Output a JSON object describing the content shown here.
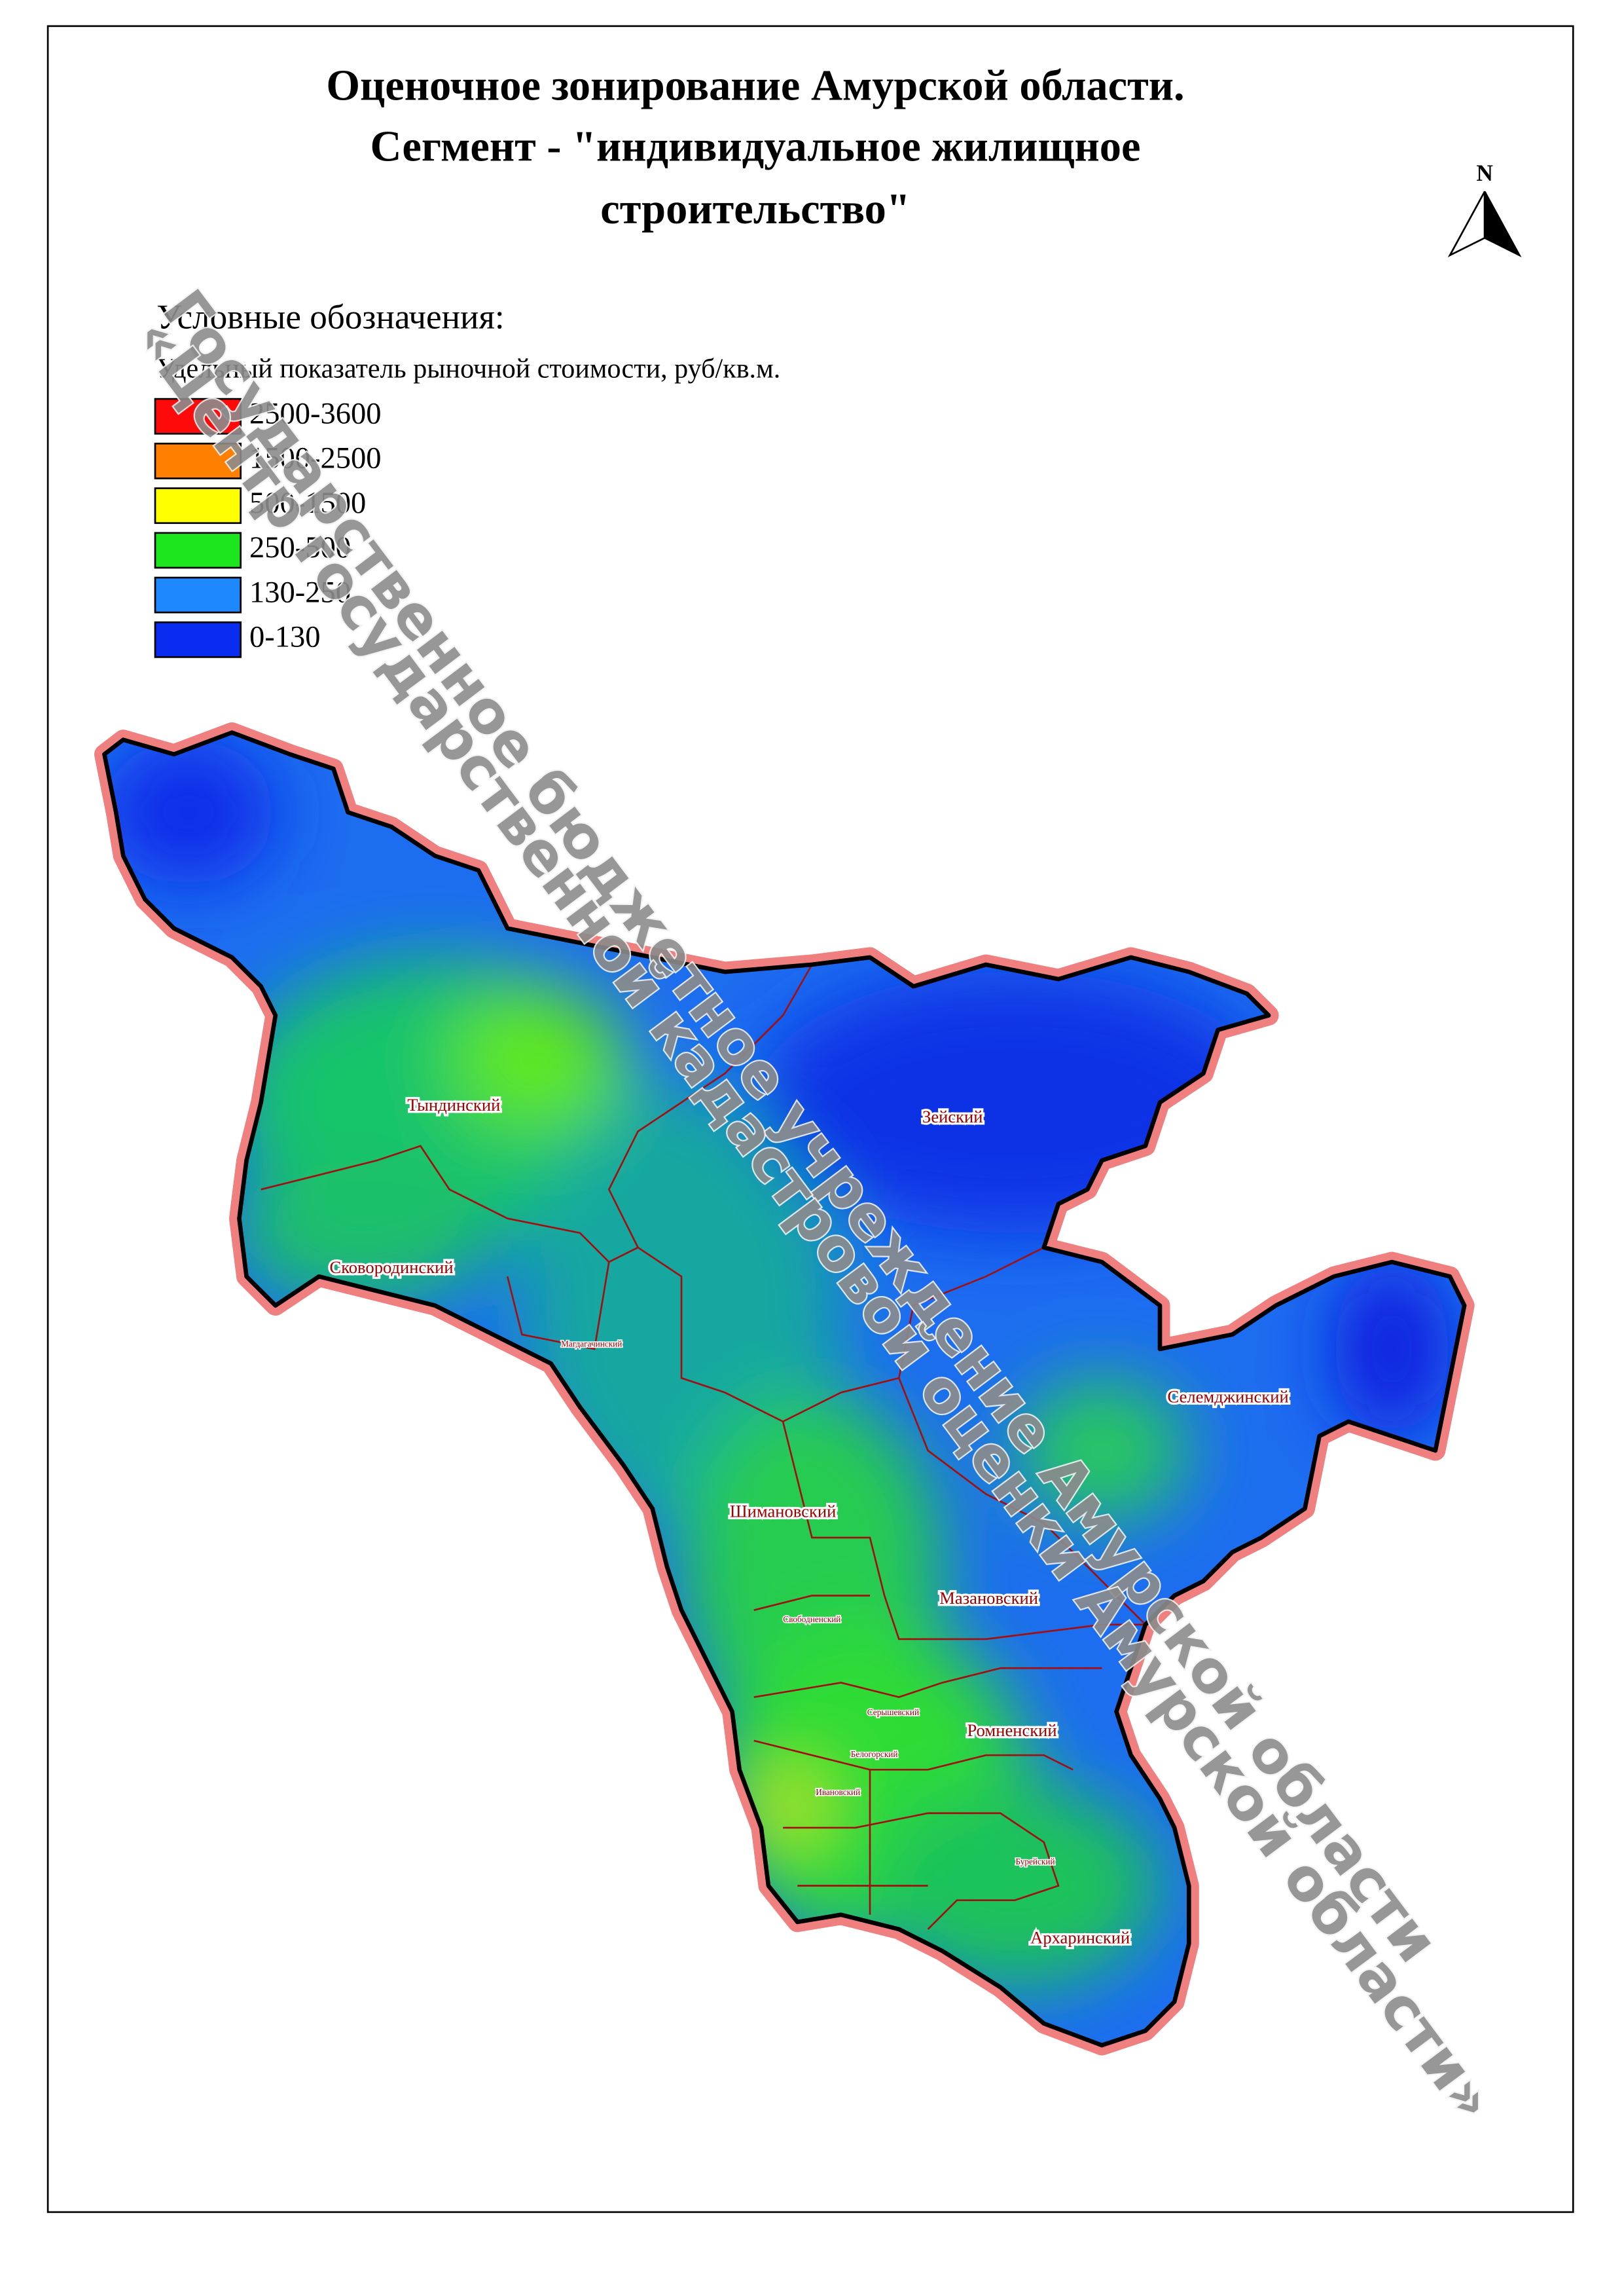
{
  "header": {
    "title_lines": [
      "Оценочное зонирование Амурской области.",
      "Сегмент - \"индивидуальное жилищное",
      "строительство\""
    ]
  },
  "north_label": "N",
  "legend": {
    "title": "Условные обозначения:",
    "subtitle": "Удельный показатель рыночной стоимости, руб/кв.м.",
    "items": [
      {
        "label": "2500-3600",
        "color": "#ff0a0a"
      },
      {
        "label": "1500-2500",
        "color": "#ff8000"
      },
      {
        "label": "500-1500",
        "color": "#ffff00"
      },
      {
        "label": "250-500",
        "color": "#1ee61e"
      },
      {
        "label": "130-250",
        "color": "#1e88ff"
      },
      {
        "label": "0-130",
        "color": "#0a2cf0"
      }
    ]
  },
  "districts": [
    "Тындинский",
    "Зейский",
    "Сковородинский",
    "Магдагачинский",
    "Селемджинский",
    "Шимановский",
    "Свободненский",
    "Мазановский",
    "Серышевский",
    "Ромненский",
    "Белогорский",
    "Ивановский",
    "Бурейский",
    "Архаринский"
  ],
  "watermark": [
    "Государственное бюджетное учреждение Амурской области",
    "«Центр государственной кадастровой оценки Амурской области»"
  ]
}
